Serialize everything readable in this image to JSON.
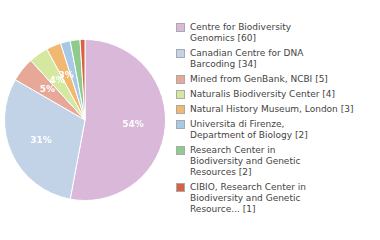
{
  "chart_data": {
    "type": "pie",
    "categories": [
      "Centre for Biodiversity\nGenomics [60]",
      "Canadian Centre for DNA\nBarcoding [34]",
      "Mined from GenBank, NCBI [5]",
      "Naturalis Biodiversity Center [4]",
      "Natural History Museum, London [3]",
      "Universita di Firenze,\nDepartment of Biology [2]",
      "Research Center in\nBiodiversity and Genetic\nResources [2]",
      "CIBIO, Research Center in\nBiodiversity and Genetic\nResource... [1]"
    ],
    "values": [
      54,
      31,
      5,
      4,
      3,
      2,
      2,
      1
    ],
    "value_labels": [
      "54%",
      "31%",
      "5%",
      "4%",
      "3%",
      null,
      null,
      null
    ],
    "data_labels": true,
    "colors": [
      "#d9b8d9",
      "#c2d3e8",
      "#e8a898",
      "#d4e8a0",
      "#f0b870",
      "#a8c8e8",
      "#8fca8f",
      "#d96040"
    ],
    "legend": "right"
  }
}
